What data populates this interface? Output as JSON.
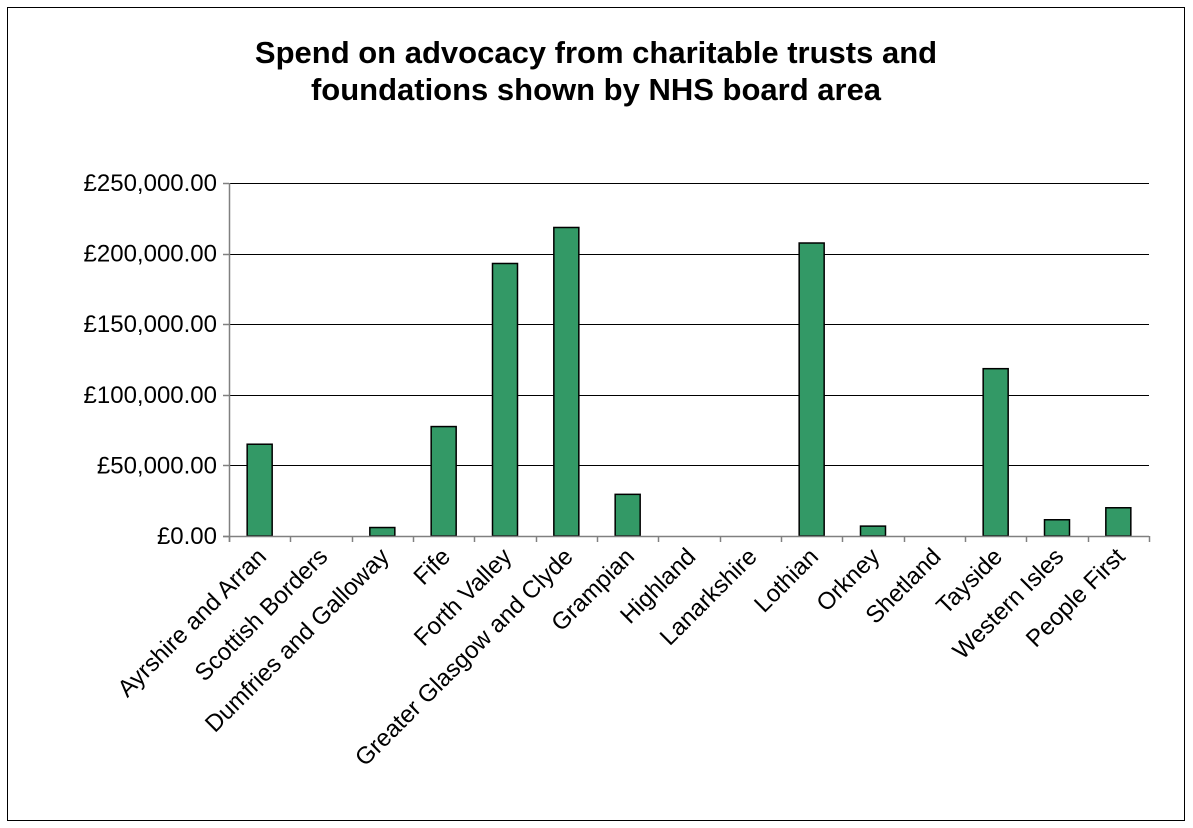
{
  "chart_data": {
    "type": "bar",
    "title_lines": [
      "Spend on advocacy from charitable trusts and",
      "foundations shown by NHS board area"
    ],
    "categories": [
      "Ayrshire and Arran",
      "Scottish Borders",
      "Dumfries and Galloway",
      "Fife",
      "Forth Valley",
      "Greater Glasgow and Clyde",
      "Grampian",
      "Highland",
      "Lanarkshire",
      "Lothian",
      "Orkney",
      "Shetland",
      "Tayside",
      "Western Isles",
      "People First"
    ],
    "values": [
      65000,
      0,
      6000,
      77500,
      193000,
      218500,
      29500,
      0,
      0,
      207500,
      7000,
      0,
      118500,
      11500,
      20000
    ],
    "y_tick_labels": [
      "£0.00",
      "£50,000.00",
      "£100,000.00",
      "£150,000.00",
      "£200,000.00",
      "£250,000.00"
    ],
    "y_ticks": [
      0,
      50000,
      100000,
      150000,
      200000,
      250000
    ],
    "ylim": [
      0,
      250000
    ],
    "xlabel": "",
    "ylabel": "",
    "grid": true,
    "legend": "none",
    "colors": {
      "bar_fill": "#339966",
      "bar_stroke": "#000000",
      "gridline": "#000000",
      "axis": "#808080"
    }
  }
}
